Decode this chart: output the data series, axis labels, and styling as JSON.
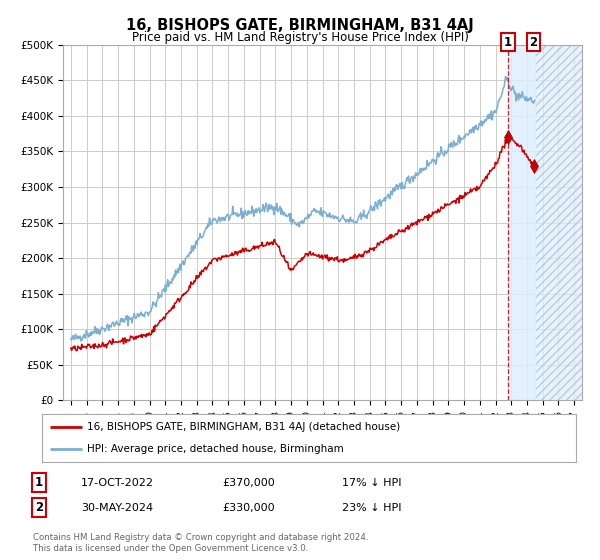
{
  "title": "16, BISHOPS GATE, BIRMINGHAM, B31 4AJ",
  "subtitle": "Price paid vs. HM Land Registry's House Price Index (HPI)",
  "legend_line1": "16, BISHOPS GATE, BIRMINGHAM, B31 4AJ (detached house)",
  "legend_line2": "HPI: Average price, detached house, Birmingham",
  "sale1_label": "17-OCT-2022",
  "sale1_price": "£370,000",
  "sale1_hpi": "17% ↓ HPI",
  "sale2_label": "30-MAY-2024",
  "sale2_price": "£330,000",
  "sale2_hpi": "23% ↓ HPI",
  "footer": "Contains HM Land Registry data © Crown copyright and database right 2024.\nThis data is licensed under the Open Government Licence v3.0.",
  "hpi_color": "#7bafd4",
  "price_color": "#cc0000",
  "marker_color": "#cc0000",
  "background_color": "#ffffff",
  "grid_color": "#cccccc",
  "sale1_x": 2022.8,
  "sale2_x": 2024.42,
  "sale1_y": 370000,
  "sale2_y": 330000,
  "ylim": [
    0,
    500000
  ],
  "xlim_start": 1994.5,
  "xlim_end": 2027.5,
  "future_shade_start": 2024.5,
  "dashed_line_x": 2022.8
}
